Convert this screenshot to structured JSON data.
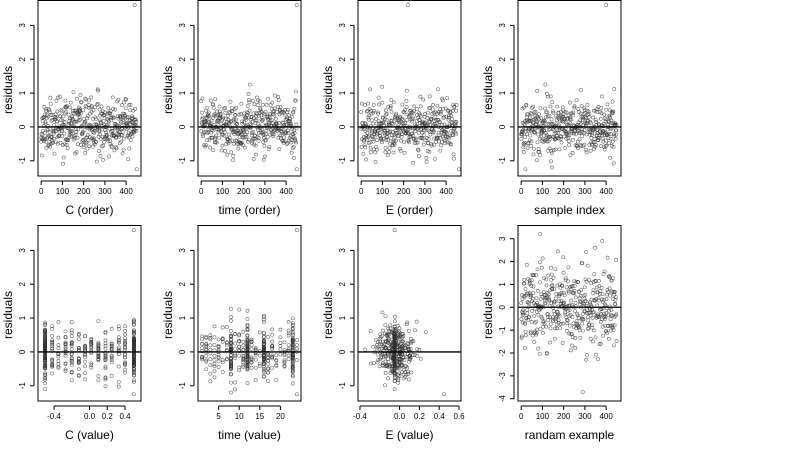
{
  "chart_data": [
    {
      "id": "c-order",
      "type": "scatter",
      "xlabel": "C (order)",
      "ylabel": "residuals",
      "xlim": [
        -15,
        470
      ],
      "ylim": [
        -1.45,
        3.75
      ],
      "xticks": [
        0,
        100,
        200,
        300,
        400
      ],
      "xtick_labels": [
        "0",
        "100",
        "200",
        "300",
        "400"
      ],
      "yticks": [
        -1,
        0,
        1,
        2,
        3
      ],
      "ytick_labels": [
        "-1",
        "0",
        "1",
        "2",
        "3"
      ],
      "hline": 0,
      "grid": false,
      "pattern": "index",
      "n": 450,
      "seed": 11,
      "sd": 0.45,
      "outliers": [
        [
          440,
          3.6
        ],
        [
          450,
          -1.25
        ]
      ]
    },
    {
      "id": "time-order",
      "type": "scatter",
      "xlabel": "time (order)",
      "ylabel": "residuals",
      "xlim": [
        -15,
        470
      ],
      "ylim": [
        -1.45,
        3.75
      ],
      "xticks": [
        0,
        100,
        200,
        300,
        400
      ],
      "xtick_labels": [
        "0",
        "100",
        "200",
        "300",
        "400"
      ],
      "yticks": [
        -1,
        0,
        1,
        2,
        3
      ],
      "ytick_labels": [
        "-1",
        "0",
        "1",
        "2",
        "3"
      ],
      "hline": 0,
      "grid": false,
      "pattern": "index",
      "n": 450,
      "seed": 23,
      "sd": 0.45,
      "outliers": [
        [
          450,
          3.6
        ],
        [
          450,
          -1.25
        ]
      ]
    },
    {
      "id": "e-order",
      "type": "scatter",
      "xlabel": "E (order)",
      "ylabel": "residuals",
      "xlim": [
        -15,
        470
      ],
      "ylim": [
        -1.45,
        3.75
      ],
      "xticks": [
        0,
        100,
        200,
        300,
        400
      ],
      "xtick_labels": [
        "0",
        "100",
        "200",
        "300",
        "400"
      ],
      "yticks": [
        -1,
        0,
        1,
        2,
        3
      ],
      "ytick_labels": [
        "-1",
        "0",
        "1",
        "2",
        "3"
      ],
      "hline": 0,
      "grid": false,
      "pattern": "index",
      "n": 450,
      "seed": 37,
      "sd": 0.45,
      "outliers": [
        [
          220,
          3.6
        ],
        [
          460,
          -1.25
        ]
      ]
    },
    {
      "id": "sample-index",
      "type": "scatter",
      "xlabel": "sample index",
      "ylabel": "residuals",
      "xlim": [
        -15,
        470
      ],
      "ylim": [
        -1.45,
        3.75
      ],
      "xticks": [
        0,
        100,
        200,
        300,
        400
      ],
      "xtick_labels": [
        "0",
        "100",
        "200",
        "300",
        "400"
      ],
      "yticks": [
        -1,
        0,
        1,
        2,
        3
      ],
      "ytick_labels": [
        "-1",
        "0",
        "1",
        "2",
        "3"
      ],
      "hline": 0,
      "grid": false,
      "pattern": "index",
      "n": 450,
      "seed": 41,
      "sd": 0.45,
      "outliers": [
        [
          400,
          3.6
        ],
        [
          20,
          -1.25
        ]
      ]
    },
    {
      "id": "c-value",
      "type": "scatter",
      "xlabel": "C (value)",
      "ylabel": "residuals",
      "xlim": [
        -0.58,
        0.58
      ],
      "ylim": [
        -1.45,
        3.75
      ],
      "xticks": [
        -0.4,
        0.0,
        0.2,
        0.4
      ],
      "xtick_labels": [
        "-0.4",
        "0.0",
        "0.2",
        "0.4"
      ],
      "yticks": [
        -1,
        0,
        1,
        2,
        3
      ],
      "ytick_labels": [
        "-1",
        "0",
        "1",
        "2",
        "3"
      ],
      "hline": 0,
      "grid": false,
      "pattern": "columns",
      "n": 450,
      "seed": 53,
      "sd": 0.45,
      "columns": [
        -0.5,
        -0.42,
        -0.35,
        -0.27,
        -0.2,
        -0.12,
        -0.05,
        0.02,
        0.1,
        0.18,
        0.25,
        0.33,
        0.4,
        0.5
      ],
      "heavy_columns": [
        -0.5,
        0.5
      ],
      "outliers": [
        [
          0.5,
          3.6
        ],
        [
          0.5,
          -1.25
        ]
      ]
    },
    {
      "id": "time-value",
      "type": "scatter",
      "xlabel": "time (value)",
      "ylabel": "residuals",
      "xlim": [
        0,
        25
      ],
      "ylim": [
        -1.45,
        3.75
      ],
      "xticks": [
        5,
        10,
        15,
        20
      ],
      "xtick_labels": [
        "5",
        "10",
        "15",
        "20"
      ],
      "yticks": [
        -1,
        0,
        1,
        2,
        3
      ],
      "ytick_labels": [
        "-1",
        "0",
        "1",
        "2",
        "3"
      ],
      "hline": 0,
      "grid": false,
      "pattern": "columns",
      "n": 450,
      "seed": 67,
      "sd": 0.45,
      "columns": [
        1,
        2,
        3,
        4,
        5,
        6,
        7,
        8,
        9,
        10,
        11,
        12,
        13,
        14,
        15,
        16,
        17,
        18,
        19,
        20,
        21,
        22,
        23,
        24
      ],
      "heavy_columns": [
        8,
        12,
        16,
        23
      ],
      "outliers": [
        [
          24,
          3.6
        ],
        [
          24,
          -1.25
        ]
      ]
    },
    {
      "id": "e-value",
      "type": "scatter",
      "xlabel": "E (value)",
      "ylabel": "residuals",
      "xlim": [
        -0.42,
        0.62
      ],
      "ylim": [
        -1.45,
        3.75
      ],
      "xticks": [
        -0.4,
        0.0,
        0.2,
        0.4,
        0.6
      ],
      "xtick_labels": [
        "-0.4",
        "0.0",
        "0.2",
        "0.4",
        "0.6"
      ],
      "yticks": [
        -1,
        0,
        1,
        2,
        3
      ],
      "ytick_labels": [
        "-1",
        "0",
        "1",
        "2",
        "3"
      ],
      "hline": 0,
      "grid": false,
      "pattern": "clustered",
      "n": 450,
      "seed": 79,
      "sd": 0.45,
      "center": -0.05,
      "spread": 0.1,
      "heavy_columns": [
        -0.05
      ],
      "outliers": [
        [
          -0.05,
          3.6
        ],
        [
          0.45,
          -1.25
        ]
      ]
    },
    {
      "id": "random-example",
      "type": "scatter",
      "xlabel": "randam example",
      "ylabel": "residuals",
      "xlim": [
        -15,
        470
      ],
      "ylim": [
        -4.1,
        3.6
      ],
      "xticks": [
        0,
        100,
        200,
        300,
        400
      ],
      "xtick_labels": [
        "0",
        "100",
        "200",
        "300",
        "400"
      ],
      "yticks": [
        -4,
        -3,
        -2,
        -1,
        0,
        1,
        2,
        3
      ],
      "ytick_labels": [
        "-4",
        "-3",
        "-2",
        "-1",
        "0",
        "1",
        "2",
        "3"
      ],
      "hline": 0,
      "grid": false,
      "pattern": "index",
      "n": 450,
      "seed": 97,
      "sd": 1.05,
      "outliers": [
        [
          90,
          3.2
        ],
        [
          290,
          -3.7
        ]
      ]
    }
  ]
}
